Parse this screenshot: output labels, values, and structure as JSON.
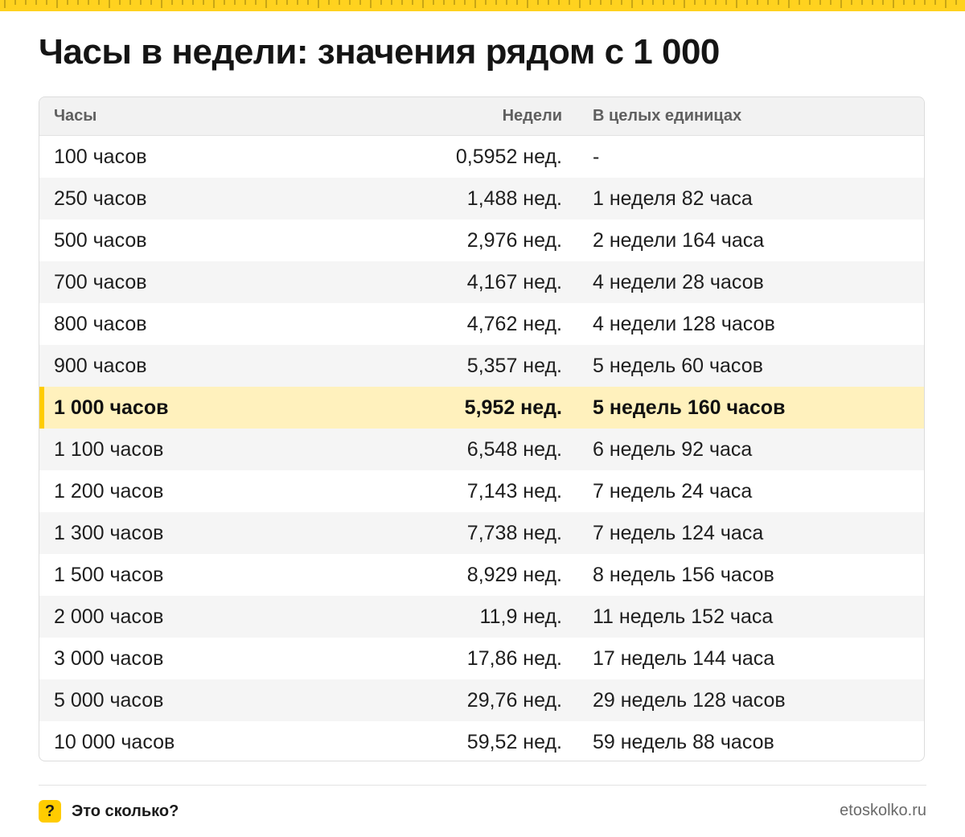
{
  "title": "Часы в недели: значения рядом с 1 000",
  "accent_color": "#ffcc00",
  "highlight_color": "#fff1bd",
  "table": {
    "headers": [
      "Часы",
      "Недели",
      "В целых единицах"
    ],
    "rows": [
      {
        "hours": "100 часов",
        "weeks": "0,5952 нед.",
        "whole": "-"
      },
      {
        "hours": "250 часов",
        "weeks": "1,488 нед.",
        "whole": "1 неделя 82 часа"
      },
      {
        "hours": "500 часов",
        "weeks": "2,976 нед.",
        "whole": "2 недели 164 часа"
      },
      {
        "hours": "700 часов",
        "weeks": "4,167 нед.",
        "whole": "4 недели 28 часов"
      },
      {
        "hours": "800 часов",
        "weeks": "4,762 нед.",
        "whole": "4 недели 128 часов"
      },
      {
        "hours": "900 часов",
        "weeks": "5,357 нед.",
        "whole": "5 недель 60 часов"
      },
      {
        "hours": "1 000 часов",
        "weeks": "5,952 нед.",
        "whole": "5 недель 160 часов",
        "highlighted": true
      },
      {
        "hours": "1 100 часов",
        "weeks": "6,548 нед.",
        "whole": "6 недель 92 часа"
      },
      {
        "hours": "1 200 часов",
        "weeks": "7,143 нед.",
        "whole": "7 недель 24 часа"
      },
      {
        "hours": "1 300 часов",
        "weeks": "7,738 нед.",
        "whole": "7 недель 124 часа"
      },
      {
        "hours": "1 500 часов",
        "weeks": "8,929 нед.",
        "whole": "8 недель 156 часов"
      },
      {
        "hours": "2 000 часов",
        "weeks": "11,9 нед.",
        "whole": "11 недель 152 часа"
      },
      {
        "hours": "3 000 часов",
        "weeks": "17,86 нед.",
        "whole": "17 недель 144 часа"
      },
      {
        "hours": "5 000 часов",
        "weeks": "29,76 нед.",
        "whole": "29 недель 128 часов"
      },
      {
        "hours": "10 000 часов",
        "weeks": "59,52 нед.",
        "whole": "59 недель 88 часов"
      }
    ]
  },
  "footer": {
    "brand_icon": "?",
    "brand_name": "Это сколько?",
    "site": "etoskolko.ru"
  }
}
